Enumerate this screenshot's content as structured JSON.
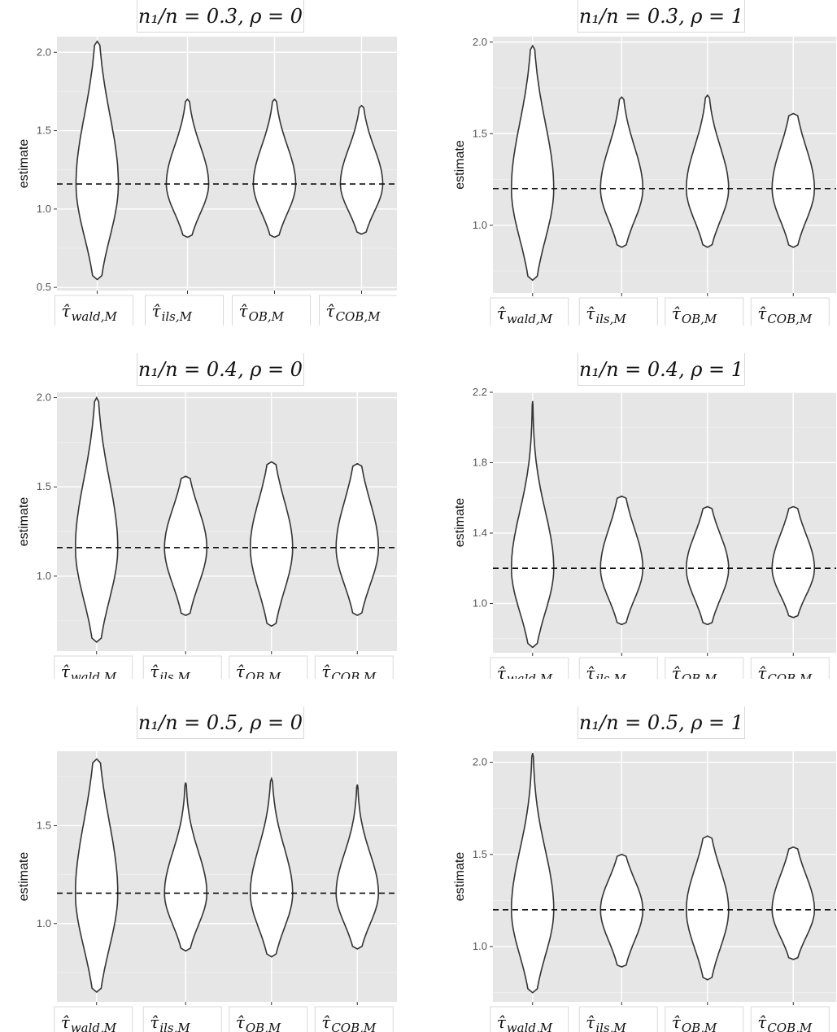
{
  "chart_data": [
    {
      "type": "violin",
      "title": "n₁/n = 0.3, ρ = 0",
      "ylabel": "estimate",
      "ylim": [
        0.48,
        2.1
      ],
      "yticks": [
        "0.5",
        "1.0",
        "1.5",
        "2.0"
      ],
      "reference_line": 1.16,
      "categories": [
        "τ̂ wald,M",
        "τ̂ ils,M",
        "τ̂ OB,M",
        "τ̂ COB,M"
      ],
      "series": [
        {
          "min": 0.55,
          "max": 2.07,
          "center": 1.16
        },
        {
          "min": 0.82,
          "max": 1.7,
          "center": 1.16
        },
        {
          "min": 0.82,
          "max": 1.7,
          "center": 1.16
        },
        {
          "min": 0.84,
          "max": 1.66,
          "center": 1.16
        }
      ]
    },
    {
      "type": "violin",
      "title": "n₁/n = 0.3, ρ = 1",
      "ylabel": "estimate",
      "ylim": [
        0.63,
        2.03
      ],
      "yticks": [
        "1.0",
        "1.5",
        "2.0"
      ],
      "reference_line": 1.2,
      "categories": [
        "τ̂ wald,M",
        "τ̂ ils,M",
        "τ̂ OB,M",
        "τ̂ COB,M"
      ],
      "series": [
        {
          "min": 0.7,
          "max": 1.98,
          "center": 1.2
        },
        {
          "min": 0.88,
          "max": 1.7,
          "center": 1.2
        },
        {
          "min": 0.88,
          "max": 1.71,
          "center": 1.2
        },
        {
          "min": 0.88,
          "max": 1.61,
          "center": 1.2
        }
      ]
    },
    {
      "type": "violin",
      "title": "n₁/n = 0.4, ρ = 0",
      "ylabel": "estimate",
      "ylim": [
        0.58,
        2.03
      ],
      "yticks": [
        "1.0",
        "1.5",
        "2.0"
      ],
      "reference_line": 1.16,
      "categories": [
        "τ̂ wald,M",
        "τ̂ ils,M",
        "τ̂ OB,M",
        "τ̂ COB,M"
      ],
      "series": [
        {
          "min": 0.63,
          "max": 2.0,
          "center": 1.16
        },
        {
          "min": 0.78,
          "max": 1.56,
          "center": 1.16
        },
        {
          "min": 0.72,
          "max": 1.64,
          "center": 1.16
        },
        {
          "min": 0.78,
          "max": 1.63,
          "center": 1.16
        }
      ]
    },
    {
      "type": "violin",
      "title": "n₁/n = 0.4, ρ = 1",
      "ylabel": "estimate",
      "ylim": [
        0.72,
        2.2
      ],
      "yticks": [
        "1.0",
        "1.4",
        "1.8",
        "2.2"
      ],
      "reference_line": 1.2,
      "categories": [
        "τ̂ wald,M",
        "τ̂ ils,M",
        "τ̂ OB,M",
        "τ̂ COB,M"
      ],
      "series": [
        {
          "min": 0.75,
          "max": 2.15,
          "center": 1.2
        },
        {
          "min": 0.88,
          "max": 1.61,
          "center": 1.2
        },
        {
          "min": 0.88,
          "max": 1.55,
          "center": 1.2
        },
        {
          "min": 0.92,
          "max": 1.55,
          "center": 1.2
        }
      ]
    },
    {
      "type": "violin",
      "title": "n₁/n = 0.5, ρ = 0",
      "ylabel": "estimate",
      "ylim": [
        0.6,
        1.88
      ],
      "yticks": [
        "1.0",
        "1.5"
      ],
      "reference_line": 1.155,
      "categories": [
        "τ̂ wald,M",
        "τ̂ ils,M",
        "τ̂ OB,M",
        "τ̂ COB,M"
      ],
      "series": [
        {
          "min": 0.65,
          "max": 1.84,
          "center": 1.155
        },
        {
          "min": 0.86,
          "max": 1.72,
          "center": 1.155
        },
        {
          "min": 0.83,
          "max": 1.74,
          "center": 1.155
        },
        {
          "min": 0.87,
          "max": 1.71,
          "center": 1.155
        }
      ]
    },
    {
      "type": "violin",
      "title": "n₁/n = 0.5, ρ = 1",
      "ylabel": "estimate",
      "ylim": [
        0.7,
        2.06
      ],
      "yticks": [
        "1.0",
        "1.5",
        "2.0"
      ],
      "reference_line": 1.2,
      "categories": [
        "τ̂ wald,M",
        "τ̂ ils,M",
        "τ̂ OB,M",
        "τ̂ COB,M"
      ],
      "series": [
        {
          "min": 0.75,
          "max": 2.05,
          "center": 1.2
        },
        {
          "min": 0.89,
          "max": 1.5,
          "center": 1.2
        },
        {
          "min": 0.82,
          "max": 1.6,
          "center": 1.2
        },
        {
          "min": 0.93,
          "max": 1.54,
          "center": 1.2
        }
      ]
    }
  ],
  "colors": {
    "panel_bg": "#e6e6e6",
    "grid_major": "#ffffff",
    "grid_minor": "#f0f0f0",
    "violin_fill": "#ffffff",
    "violin_stroke": "#333333",
    "ref_line": "#111111"
  }
}
